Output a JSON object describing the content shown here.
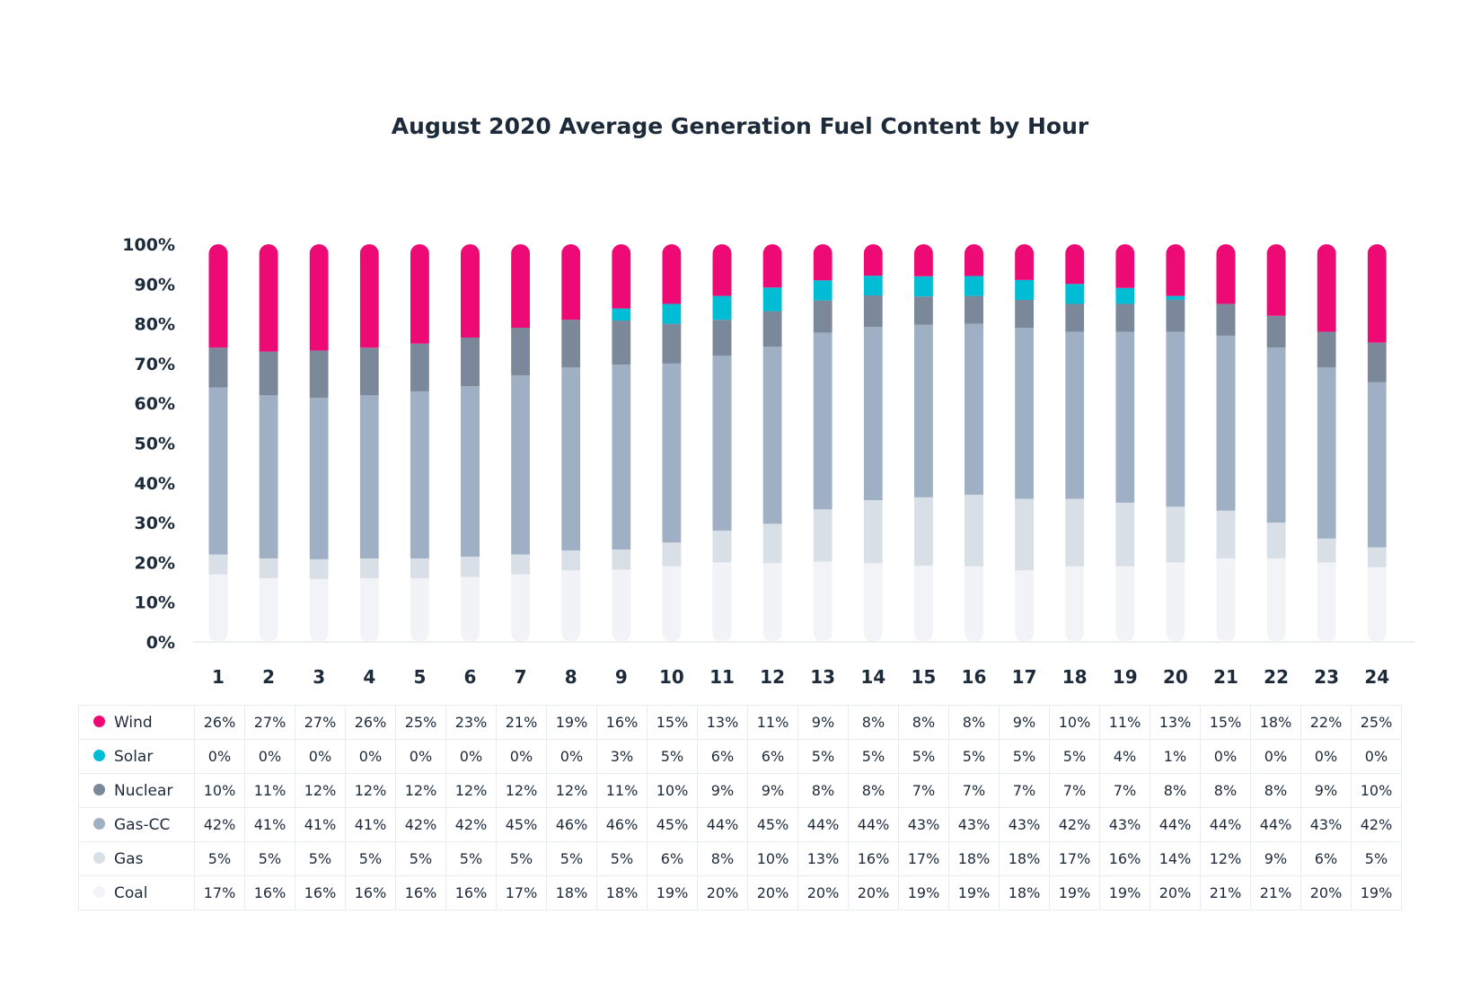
{
  "chart_data": {
    "type": "bar",
    "stacked": true,
    "title": "August 2020 Average Generation Fuel Content by Hour",
    "xlabel": "",
    "ylabel": "",
    "ylim": [
      0,
      100
    ],
    "y_ticks": [
      "0%",
      "10%",
      "20%",
      "30%",
      "40%",
      "50%",
      "60%",
      "70%",
      "80%",
      "90%",
      "100%"
    ],
    "categories": [
      "1",
      "2",
      "3",
      "4",
      "5",
      "6",
      "7",
      "8",
      "9",
      "10",
      "11",
      "12",
      "13",
      "14",
      "15",
      "16",
      "17",
      "18",
      "19",
      "20",
      "21",
      "22",
      "23",
      "24"
    ],
    "series": [
      {
        "name": "Wind",
        "color": "#ee0a74",
        "values": [
          26,
          27,
          27,
          26,
          25,
          23,
          21,
          19,
          16,
          15,
          13,
          11,
          9,
          8,
          8,
          8,
          9,
          10,
          11,
          13,
          15,
          18,
          22,
          25
        ]
      },
      {
        "name": "Solar",
        "color": "#00bcd4",
        "values": [
          0,
          0,
          0,
          0,
          0,
          0,
          0,
          0,
          3,
          5,
          6,
          6,
          5,
          5,
          5,
          5,
          5,
          5,
          4,
          1,
          0,
          0,
          0,
          0
        ]
      },
      {
        "name": "Nuclear",
        "color": "#7a8899",
        "values": [
          10,
          11,
          12,
          12,
          12,
          12,
          12,
          12,
          11,
          10,
          9,
          9,
          8,
          8,
          7,
          7,
          7,
          7,
          7,
          8,
          8,
          8,
          9,
          10
        ]
      },
      {
        "name": "Gas-CC",
        "color": "#9fb0c4",
        "values": [
          42,
          41,
          41,
          41,
          42,
          42,
          45,
          46,
          46,
          45,
          44,
          45,
          44,
          44,
          43,
          43,
          43,
          42,
          43,
          44,
          44,
          44,
          43,
          42
        ]
      },
      {
        "name": "Gas",
        "color": "#d9dfe6",
        "values": [
          5,
          5,
          5,
          5,
          5,
          5,
          5,
          5,
          5,
          6,
          8,
          10,
          13,
          16,
          17,
          18,
          18,
          17,
          16,
          14,
          12,
          9,
          6,
          5
        ]
      },
      {
        "name": "Coal",
        "color": "#f1f3f6",
        "values": [
          17,
          16,
          16,
          16,
          16,
          16,
          17,
          18,
          18,
          19,
          20,
          20,
          20,
          20,
          19,
          19,
          18,
          19,
          19,
          20,
          21,
          21,
          20,
          19
        ]
      }
    ],
    "table_rows_order": [
      "Wind",
      "Solar",
      "Nuclear",
      "Gas-CC",
      "Gas",
      "Coal"
    ],
    "stack_order_bottom_to_top": [
      "Coal",
      "Gas",
      "Gas-CC",
      "Nuclear",
      "Solar",
      "Wind"
    ],
    "value_suffix": "%"
  }
}
